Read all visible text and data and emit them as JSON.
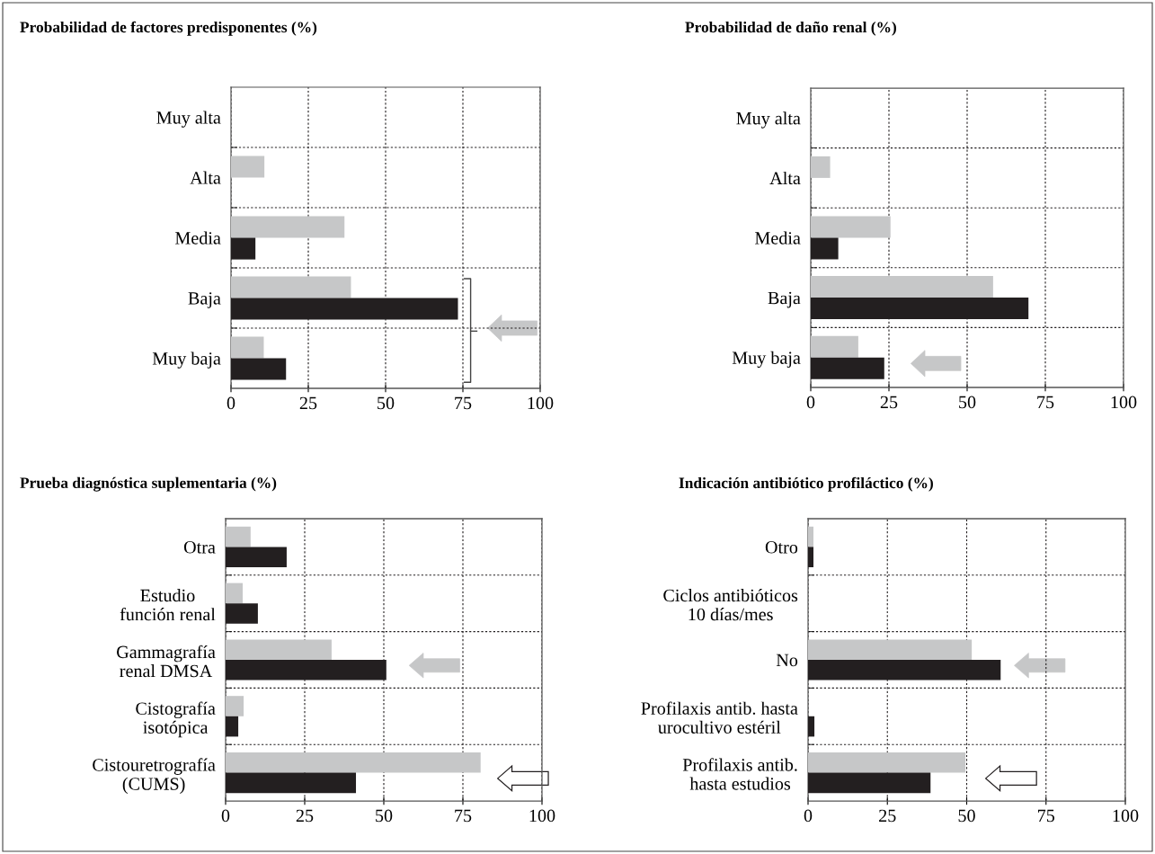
{
  "chart_data": [
    {
      "type": "bar",
      "orientation": "horizontal",
      "title": "Probabilidad de factores predisponentes (%)",
      "categories": [
        "Muy alta",
        "Alta",
        "Media",
        "Baja",
        "Muy baja"
      ],
      "xlim": [
        0,
        100
      ],
      "xticks": [
        0,
        25,
        50,
        75,
        100
      ],
      "grid": true,
      "series": [
        {
          "color": "#c6c7c8",
          "values": [
            0,
            10.8,
            36.7,
            38.8,
            10.6
          ]
        },
        {
          "color": "#231f20",
          "values": [
            0,
            0,
            7.9,
            73.4,
            17.8
          ]
        }
      ]
    },
    {
      "type": "bar",
      "orientation": "horizontal",
      "title": "Probabilidad de daño renal (%)",
      "categories": [
        "Muy alta",
        "Alta",
        "Media",
        "Baja",
        "Muy baja"
      ],
      "xlim": [
        0,
        100
      ],
      "xticks": [
        0,
        25,
        50,
        75,
        100
      ],
      "grid": true,
      "series": [
        {
          "color": "#c6c7c8",
          "values": [
            0,
            6.2,
            25.5,
            58.3,
            15.2
          ]
        },
        {
          "color": "#231f20",
          "values": [
            0,
            0,
            8.8,
            69.6,
            23.5
          ]
        }
      ]
    },
    {
      "type": "bar",
      "orientation": "horizontal",
      "title": "Prueba diagnóstica suplementaria (%)",
      "categories": [
        "Otra",
        "Estudio\nfunción renal",
        "Gammagrafía\nrenal DMSA",
        "Cistografía\nisotópica",
        "Cistouretrografía\n(CUMS)"
      ],
      "xlim": [
        0,
        100
      ],
      "xticks": [
        0,
        25,
        50,
        75,
        100
      ],
      "grid": true,
      "series": [
        {
          "color": "#c6c7c8",
          "values": [
            7.9,
            5.4,
            33.5,
            5.7,
            80.6
          ]
        },
        {
          "color": "#231f20",
          "values": [
            19.3,
            10.2,
            50.8,
            4.0,
            41.2
          ]
        }
      ]
    },
    {
      "type": "bar",
      "orientation": "horizontal",
      "title": "Indicación antibiótico profiláctico (%)",
      "categories": [
        "Otro",
        "Ciclos antibióticos\n10 días/mes",
        "No",
        "Profilaxis antib. hasta\nurocultivo estéril",
        "Profilaxis antib.\nhasta estudios"
      ],
      "xlim": [
        0,
        100
      ],
      "xticks": [
        0,
        25,
        50,
        75,
        100
      ],
      "grid": true,
      "series": [
        {
          "color": "#c6c7c8",
          "values": [
            1.7,
            0,
            51.6,
            0,
            49.6
          ]
        },
        {
          "color": "#231f20",
          "values": [
            1.7,
            0,
            60.7,
            2.0,
            38.6
          ]
        }
      ]
    }
  ]
}
